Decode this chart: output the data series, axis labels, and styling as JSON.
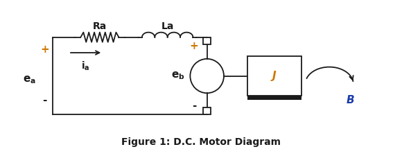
{
  "title": "Figure 1: D.C. Motor Diagram",
  "title_fontsize": 10,
  "title_color": "#1a1a1a",
  "background_color": "#ffffff",
  "line_color": "#1a1a1a",
  "label_Ra": "Ra",
  "label_La": "La",
  "label_J": "J",
  "label_B": "B",
  "label_plus_left": "+",
  "label_minus_left": "-",
  "label_plus_right": "+",
  "label_minus_right": "-",
  "orange_color": "#cc7700",
  "blue_color": "#1a3aaa",
  "dark_color": "#1a1a1a",
  "xlim": [
    0,
    10
  ],
  "ylim": [
    0,
    3.8
  ],
  "figwidth": 5.8,
  "figheight": 2.25,
  "dpi": 100
}
